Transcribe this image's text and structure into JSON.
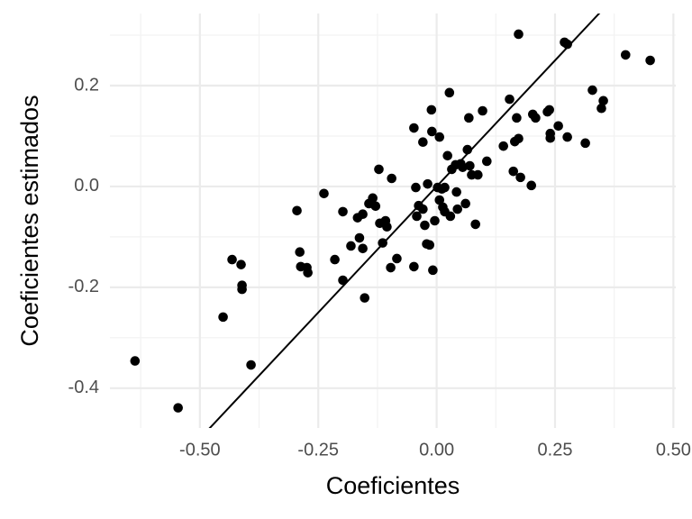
{
  "chart_data": {
    "type": "scatter",
    "x_label": "Coeficientes",
    "y_label": "Coeficientes estimados",
    "x": [
      -0.637,
      -0.546,
      -0.451,
      -0.432,
      -0.413,
      -0.411,
      -0.411,
      -0.392,
      -0.295,
      -0.289,
      -0.287,
      -0.274,
      -0.272,
      -0.238,
      -0.215,
      -0.198,
      -0.198,
      -0.181,
      -0.167,
      -0.163,
      -0.156,
      -0.156,
      -0.152,
      -0.143,
      -0.135,
      -0.129,
      -0.122,
      -0.12,
      -0.114,
      -0.108,
      -0.105,
      -0.095,
      -0.097,
      -0.084,
      -0.048,
      -0.048,
      -0.044,
      -0.042,
      -0.038,
      -0.029,
      -0.029,
      -0.025,
      -0.021,
      -0.019,
      -0.015,
      -0.011,
      -0.01,
      -0.008,
      -0.004,
      0.002,
      0.006,
      0.006,
      0.011,
      0.013,
      0.017,
      0.017,
      0.023,
      0.027,
      0.029,
      0.032,
      0.04,
      0.042,
      0.044,
      0.051,
      0.055,
      0.061,
      0.065,
      0.068,
      0.07,
      0.074,
      0.082,
      0.087,
      0.097,
      0.106,
      0.141,
      0.154,
      0.162,
      0.165,
      0.169,
      0.173,
      0.173,
      0.177,
      0.2,
      0.203,
      0.209,
      0.234,
      0.238,
      0.24,
      0.24,
      0.257,
      0.27,
      0.276,
      0.276,
      0.314,
      0.329,
      0.348,
      0.352,
      0.399,
      0.451
    ],
    "series": [
      {
        "color": "#000000",
        "values": [
          -0.346,
          -0.439,
          -0.259,
          -0.145,
          -0.155,
          -0.196,
          -0.204,
          -0.354,
          -0.048,
          -0.13,
          -0.159,
          -0.161,
          -0.171,
          -0.014,
          -0.145,
          -0.05,
          -0.186,
          -0.118,
          -0.062,
          -0.102,
          -0.055,
          -0.123,
          -0.221,
          -0.034,
          -0.023,
          -0.039,
          0.034,
          -0.073,
          -0.112,
          -0.068,
          -0.08,
          0.016,
          -0.161,
          -0.143,
          0.116,
          -0.159,
          -0.002,
          -0.059,
          -0.038,
          0.088,
          -0.045,
          -0.077,
          -0.114,
          0.005,
          -0.116,
          0.152,
          0.109,
          -0.166,
          -0.068,
          -0.002,
          0.098,
          -0.027,
          -0.005,
          -0.041,
          -0.002,
          -0.05,
          0.061,
          0.186,
          -0.059,
          0.034,
          0.043,
          -0.011,
          -0.045,
          0.045,
          0.038,
          -0.034,
          0.073,
          0.136,
          0.041,
          0.023,
          -0.075,
          0.023,
          0.15,
          0.05,
          0.08,
          0.173,
          0.03,
          0.089,
          0.136,
          0.095,
          0.302,
          0.018,
          0.002,
          0.143,
          0.136,
          0.148,
          0.152,
          0.105,
          0.096,
          0.12,
          0.286,
          0.282,
          0.098,
          0.086,
          0.191,
          0.155,
          0.17,
          0.261,
          0.25
        ]
      }
    ],
    "reference_line": {
      "intercept": 0,
      "slope": 1,
      "color": "#000000"
    },
    "xlim": [
      -0.69,
      0.505
    ],
    "ylim": [
      -0.479,
      0.343
    ],
    "xticks": [
      {
        "value": -0.5,
        "label": "-0.50"
      },
      {
        "value": -0.25,
        "label": "-0.25"
      },
      {
        "value": 0,
        "label": "0.00"
      },
      {
        "value": 0.25,
        "label": "0.25"
      },
      {
        "value": 0.5,
        "label": "0.50"
      }
    ],
    "yticks": [
      -0.4,
      -0.2,
      {
        "value": 0,
        "label": "0.0"
      },
      0.2
    ],
    "grid": true
  }
}
